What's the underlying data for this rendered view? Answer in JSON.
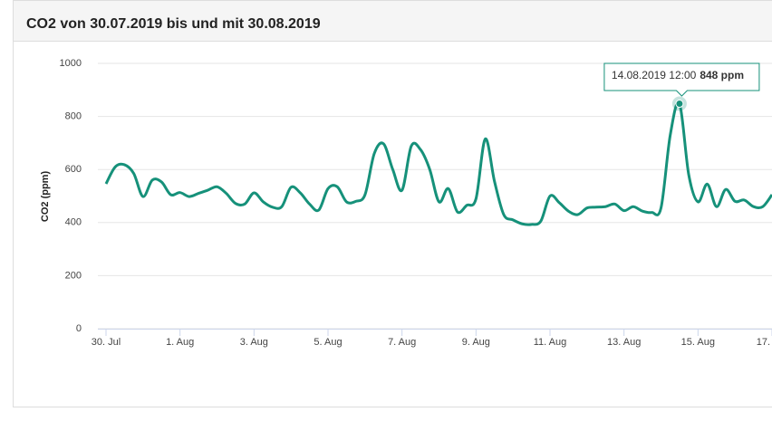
{
  "chart_data": {
    "type": "line",
    "title": "CO2 von 30.07.2019 bis und mit 30.08.2019",
    "y_label": "CO2 (ppm)",
    "x": [
      "30.07.2019 00:00",
      "30.07.2019 06:00",
      "30.07.2019 12:00",
      "30.07.2019 18:00",
      "31.07.2019 00:00",
      "31.07.2019 06:00",
      "31.07.2019 12:00",
      "31.07.2019 18:00",
      "01.08.2019 00:00",
      "01.08.2019 06:00",
      "01.08.2019 12:00",
      "01.08.2019 18:00",
      "02.08.2019 00:00",
      "02.08.2019 06:00",
      "02.08.2019 12:00",
      "02.08.2019 18:00",
      "03.08.2019 00:00",
      "03.08.2019 06:00",
      "03.08.2019 12:00",
      "03.08.2019 18:00",
      "04.08.2019 00:00",
      "04.08.2019 06:00",
      "04.08.2019 12:00",
      "04.08.2019 18:00",
      "05.08.2019 00:00",
      "05.08.2019 06:00",
      "05.08.2019 12:00",
      "05.08.2019 18:00",
      "06.08.2019 00:00",
      "06.08.2019 06:00",
      "06.08.2019 12:00",
      "06.08.2019 18:00",
      "07.08.2019 00:00",
      "07.08.2019 06:00",
      "07.08.2019 12:00",
      "07.08.2019 18:00",
      "08.08.2019 00:00",
      "08.08.2019 06:00",
      "08.08.2019 12:00",
      "08.08.2019 18:00",
      "09.08.2019 00:00",
      "09.08.2019 06:00",
      "09.08.2019 12:00",
      "09.08.2019 18:00",
      "10.08.2019 00:00",
      "10.08.2019 06:00",
      "10.08.2019 12:00",
      "10.08.2019 18:00",
      "11.08.2019 00:00",
      "11.08.2019 06:00",
      "11.08.2019 12:00",
      "11.08.2019 18:00",
      "12.08.2019 00:00",
      "12.08.2019 06:00",
      "12.08.2019 12:00",
      "12.08.2019 18:00",
      "13.08.2019 00:00",
      "13.08.2019 06:00",
      "13.08.2019 12:00",
      "13.08.2019 18:00",
      "14.08.2019 00:00",
      "14.08.2019 06:00",
      "14.08.2019 12:00",
      "14.08.2019 18:00",
      "15.08.2019 00:00",
      "15.08.2019 06:00",
      "15.08.2019 12:00",
      "15.08.2019 18:00",
      "16.08.2019 00:00",
      "16.08.2019 06:00",
      "16.08.2019 12:00",
      "16.08.2019 18:00",
      "17.08.2019 00:00"
    ],
    "series": [
      {
        "color": "#16917a",
        "values": [
          546,
          610,
          618,
          585,
          498,
          560,
          553,
          505,
          513,
          498,
          510,
          522,
          535,
          510,
          472,
          470,
          512,
          478,
          458,
          460,
          533,
          512,
          470,
          447,
          528,
          535,
          478,
          480,
          505,
          660,
          697,
          600,
          522,
          688,
          675,
          600,
          478,
          528,
          440,
          465,
          490,
          715,
          555,
          430,
          410,
          395,
          393,
          405,
          500,
          475,
          443,
          430,
          455,
          458,
          460,
          470,
          445,
          460,
          443,
          438,
          455,
          730,
          848,
          580,
          478,
          545,
          460,
          525,
          480,
          485,
          460,
          460,
          505
        ]
      }
    ],
    "xlim": [
      "30.07.2019 00:00",
      "17.08.2019 00:00"
    ],
    "xticks": [
      {
        "value": "30.07.2019 00:00",
        "label": "30. Jul"
      },
      {
        "value": "01.08.2019 00:00",
        "label": "1. Aug"
      },
      {
        "value": "03.08.2019 00:00",
        "label": "3. Aug"
      },
      {
        "value": "05.08.2019 00:00",
        "label": "5. Aug"
      },
      {
        "value": "07.08.2019 00:00",
        "label": "7. Aug"
      },
      {
        "value": "09.08.2019 00:00",
        "label": "9. Aug"
      },
      {
        "value": "11.08.2019 00:00",
        "label": "11. Aug"
      },
      {
        "value": "13.08.2019 00:00",
        "label": "13. Aug"
      },
      {
        "value": "15.08.2019 00:00",
        "label": "15. Aug"
      },
      {
        "value": "17.08.2019 00:00",
        "label": "17."
      }
    ],
    "ylim": [
      0,
      1000
    ],
    "yticks": [
      0,
      200,
      400,
      600,
      800,
      1000
    ],
    "grid": true,
    "tooltip": {
      "x": "14.08.2019 12:00",
      "value": 848,
      "value_label": "848 ppm"
    }
  }
}
